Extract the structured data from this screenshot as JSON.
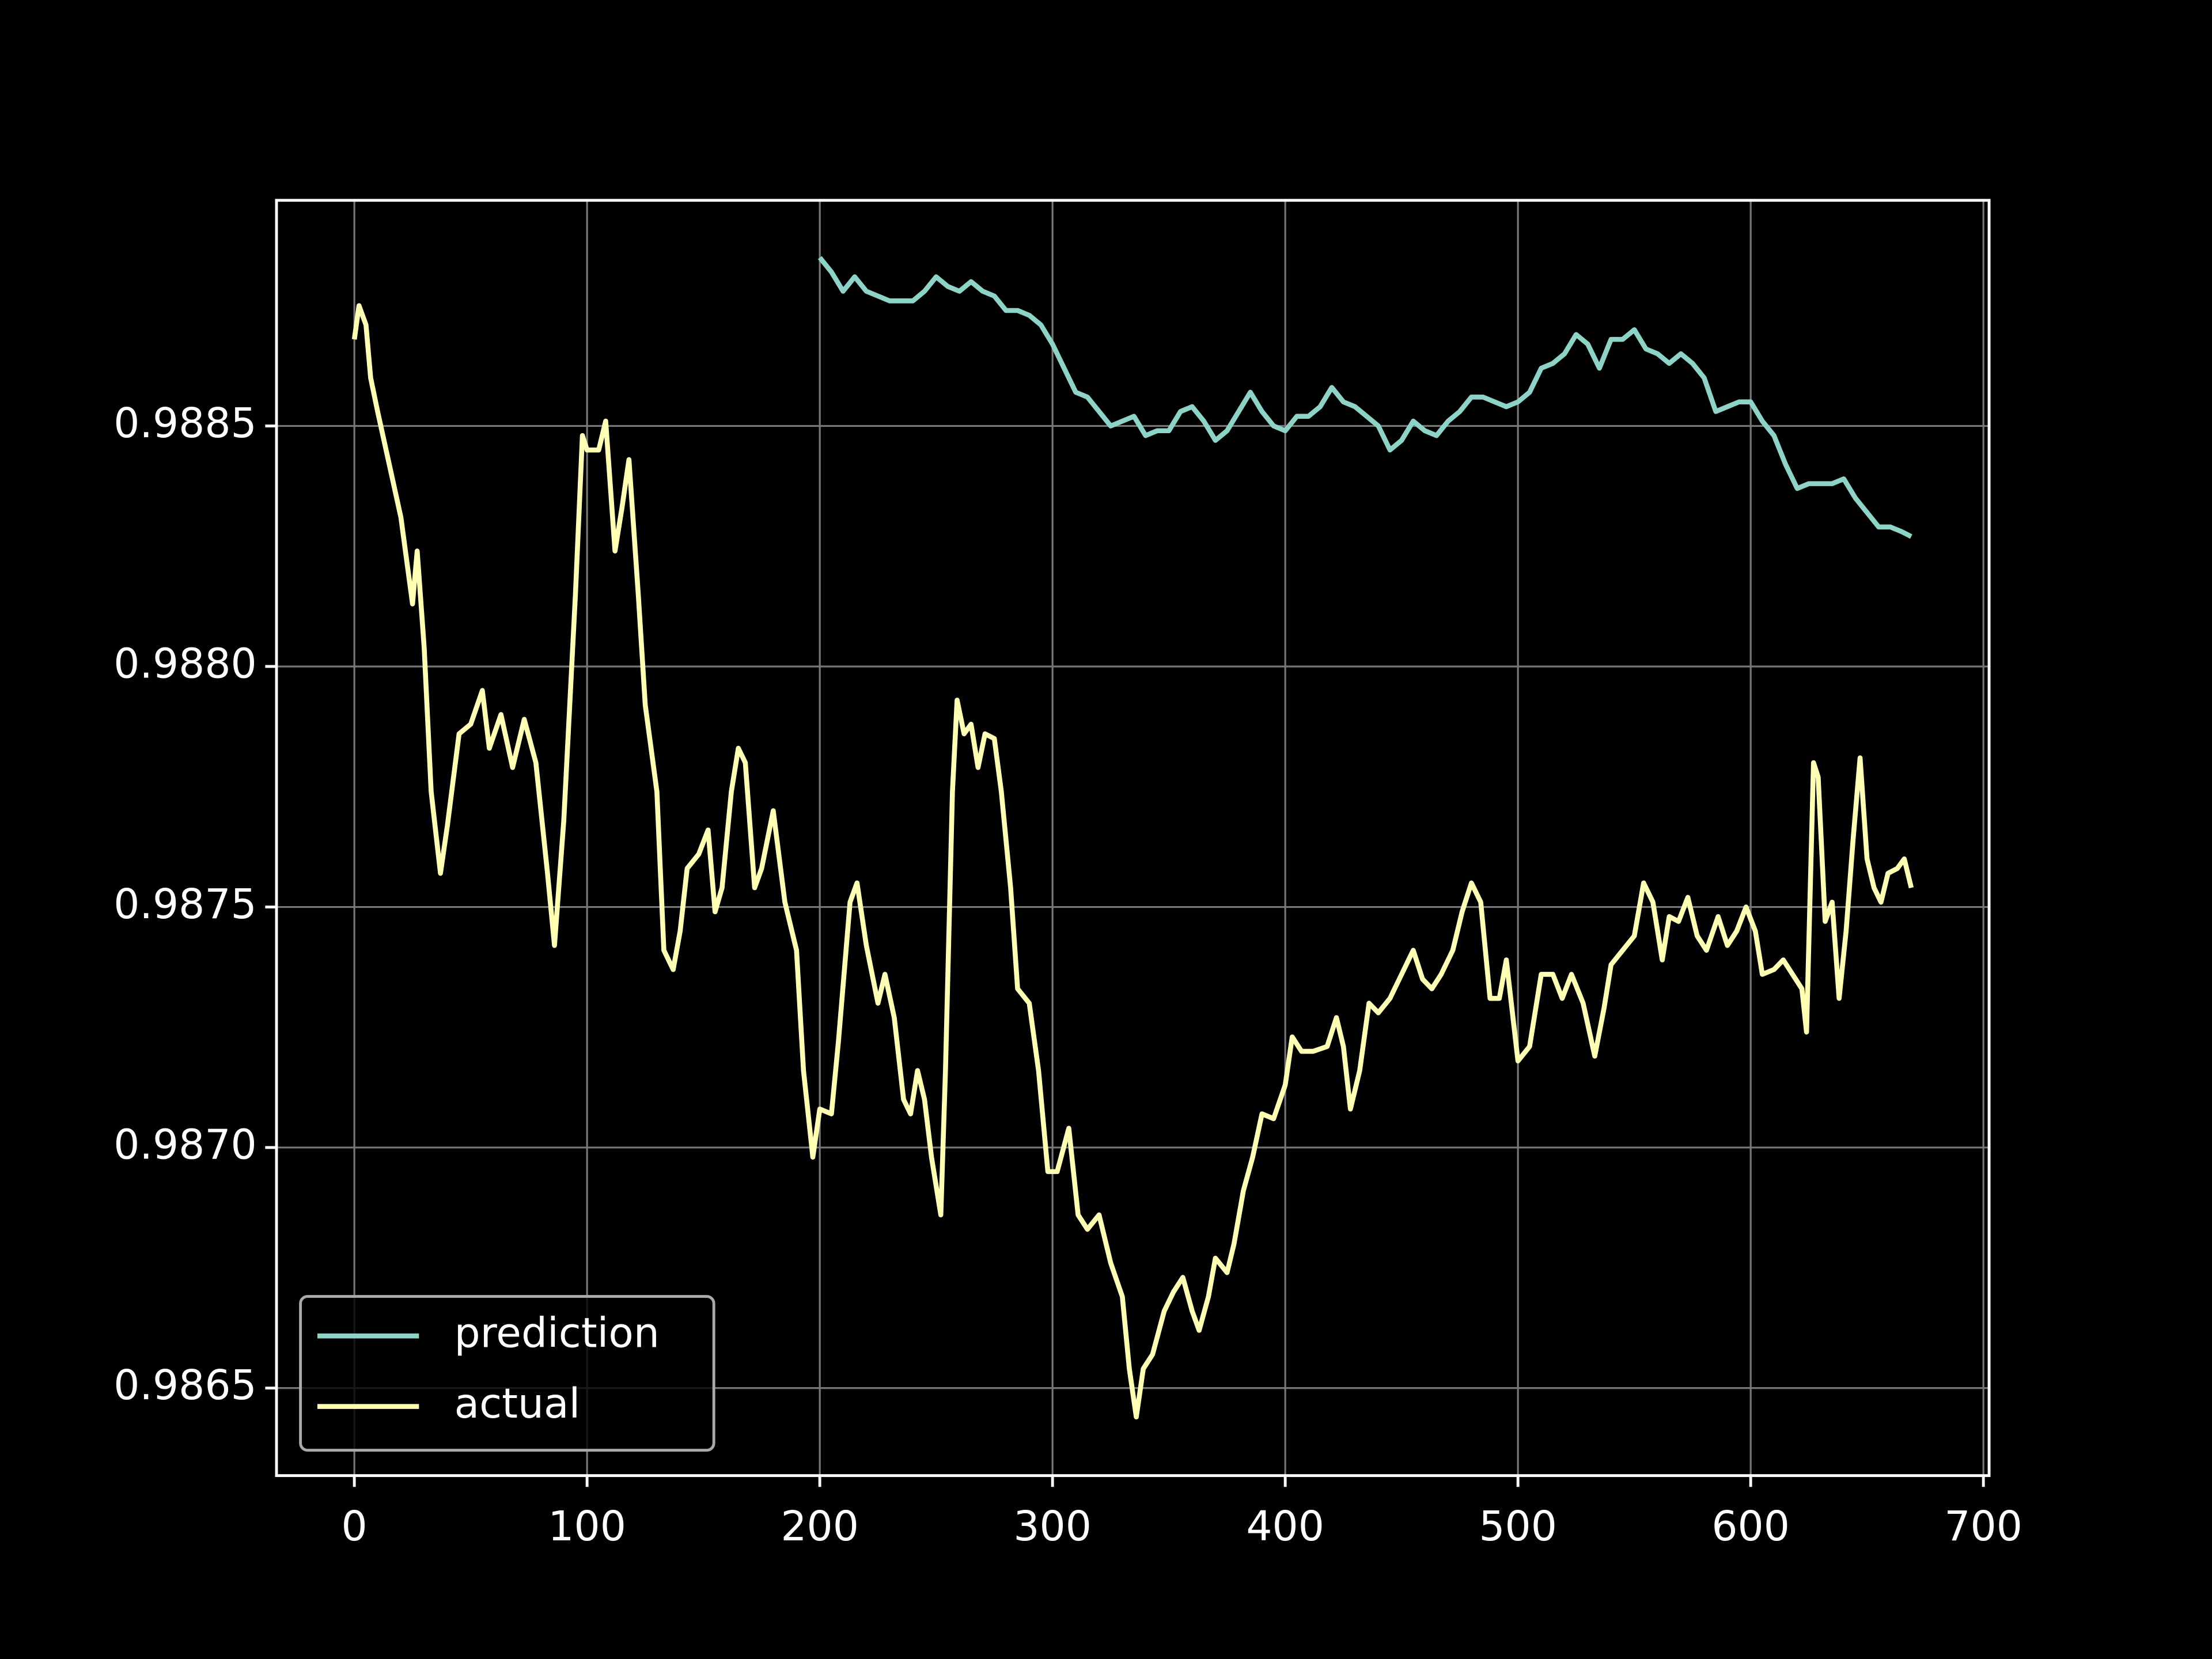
{
  "chart_data": {
    "type": "line",
    "xlim": [
      -33.45,
      702.45
    ],
    "xticks": [
      0,
      100,
      200,
      300,
      400,
      500,
      600,
      700
    ],
    "ylim": [
      0.986318,
      0.988969
    ],
    "yticks": [
      0.9865,
      {
        "value": 0.987,
        "label": "0.9870"
      },
      0.9875,
      {
        "value": 0.988,
        "label": "0.9880"
      },
      0.9885
    ],
    "grid": true,
    "legend": "lower left",
    "series": [
      {
        "name": "prediction",
        "color": "#8dd3c7",
        "x": [
          200,
          205,
          210,
          215,
          220,
          225,
          230,
          235,
          240,
          245,
          250,
          255,
          260,
          265,
          270,
          275,
          280,
          285,
          290,
          295,
          300,
          305,
          310,
          315,
          320,
          325,
          330,
          335,
          340,
          345,
          350,
          355,
          360,
          365,
          370,
          375,
          380,
          385,
          390,
          395,
          400,
          405,
          410,
          415,
          420,
          425,
          430,
          435,
          440,
          445,
          450,
          455,
          460,
          465,
          470,
          475,
          480,
          485,
          490,
          495,
          500,
          505,
          510,
          515,
          520,
          525,
          530,
          535,
          540,
          545,
          550,
          555,
          560,
          565,
          570,
          575,
          580,
          585,
          590,
          595,
          600,
          605,
          610,
          615,
          620,
          625,
          630,
          635,
          640,
          645,
          650,
          655,
          660,
          665,
          669
        ],
        "values": [
          0.98885,
          0.98882,
          0.98878,
          0.98881,
          0.98878,
          0.98877,
          0.98876,
          0.98876,
          0.98876,
          0.98878,
          0.98881,
          0.98879,
          0.98878,
          0.9888,
          0.98878,
          0.98877,
          0.98874,
          0.98874,
          0.98873,
          0.98871,
          0.98867,
          0.98862,
          0.98857,
          0.98856,
          0.98853,
          0.9885,
          0.98851,
          0.98852,
          0.98848,
          0.98849,
          0.98849,
          0.98853,
          0.98854,
          0.98851,
          0.98847,
          0.98849,
          0.98853,
          0.98857,
          0.98853,
          0.9885,
          0.98849,
          0.98852,
          0.98852,
          0.98854,
          0.98858,
          0.98855,
          0.98854,
          0.98852,
          0.9885,
          0.98845,
          0.98847,
          0.98851,
          0.98849,
          0.98848,
          0.98851,
          0.98853,
          0.98856,
          0.98856,
          0.98855,
          0.98854,
          0.98855,
          0.98857,
          0.98862,
          0.98863,
          0.98865,
          0.98869,
          0.98867,
          0.98862,
          0.98868,
          0.98868,
          0.9887,
          0.98866,
          0.98865,
          0.98863,
          0.98865,
          0.98863,
          0.9886,
          0.98853,
          0.98854,
          0.98855,
          0.98855,
          0.98851,
          0.98848,
          0.98842,
          0.98837,
          0.98838,
          0.98838,
          0.98838,
          0.98839,
          0.98835,
          0.98832,
          0.98829,
          0.98829,
          0.98828,
          0.98827
        ]
      },
      {
        "name": "actual",
        "color": "#feffb3",
        "x": [
          0,
          2,
          5,
          7,
          10,
          15,
          20,
          25,
          27,
          30,
          33,
          37,
          40,
          45,
          50,
          55,
          58,
          63,
          68,
          73,
          78,
          83,
          86,
          90,
          95,
          98,
          100,
          105,
          108,
          112,
          115,
          118,
          122,
          125,
          130,
          133,
          137,
          140,
          143,
          148,
          152,
          155,
          158,
          162,
          165,
          168,
          172,
          175,
          180,
          185,
          190,
          193,
          197,
          200,
          205,
          208,
          213,
          216,
          220,
          225,
          228,
          232,
          236,
          239,
          242,
          245,
          248,
          252,
          254,
          257,
          259,
          262,
          265,
          268,
          271,
          275,
          278,
          282,
          285,
          290,
          294,
          298,
          302,
          307,
          311,
          315,
          320,
          325,
          330,
          333,
          336,
          339,
          343,
          348,
          352,
          356,
          360,
          363,
          367,
          370,
          375,
          378,
          382,
          386,
          390,
          395,
          400,
          403,
          407,
          412,
          418,
          422,
          425,
          428,
          432,
          436,
          440,
          445,
          450,
          455,
          459,
          463,
          467,
          472,
          476,
          480,
          484,
          488,
          492,
          495,
          500,
          505,
          510,
          515,
          519,
          523,
          528,
          533,
          537,
          540,
          545,
          550,
          554,
          558,
          562,
          565,
          569,
          573,
          577,
          581,
          586,
          590,
          594,
          598,
          602,
          605,
          610,
          614,
          618,
          622,
          624,
          627,
          629,
          632,
          635,
          638,
          641,
          644,
          647,
          650,
          653,
          656,
          659,
          663,
          666,
          669
        ],
        "values": [
          0.98868,
          0.98875,
          0.98871,
          0.9886,
          0.98853,
          0.98842,
          0.98831,
          0.98813,
          0.98824,
          0.98804,
          0.98774,
          0.98757,
          0.98767,
          0.98786,
          0.98788,
          0.98795,
          0.98783,
          0.9879,
          0.98779,
          0.98789,
          0.9878,
          0.98757,
          0.98742,
          0.98768,
          0.98815,
          0.98848,
          0.98845,
          0.98845,
          0.98851,
          0.98824,
          0.98833,
          0.98843,
          0.98815,
          0.98792,
          0.98774,
          0.98741,
          0.98737,
          0.98745,
          0.98758,
          0.98761,
          0.98766,
          0.98749,
          0.98754,
          0.98774,
          0.98783,
          0.9878,
          0.98754,
          0.98758,
          0.9877,
          0.98751,
          0.98741,
          0.98716,
          0.98698,
          0.98708,
          0.98707,
          0.98722,
          0.98751,
          0.98755,
          0.98742,
          0.9873,
          0.98736,
          0.98727,
          0.9871,
          0.98707,
          0.98716,
          0.9871,
          0.98698,
          0.98686,
          0.98716,
          0.98774,
          0.98793,
          0.98786,
          0.98788,
          0.98779,
          0.98786,
          0.98785,
          0.98774,
          0.98754,
          0.98733,
          0.9873,
          0.98716,
          0.98695,
          0.98695,
          0.98704,
          0.98686,
          0.98683,
          0.98686,
          0.98676,
          0.98669,
          0.98654,
          0.98644,
          0.98654,
          0.98657,
          0.98666,
          0.9867,
          0.98673,
          0.98666,
          0.98662,
          0.98669,
          0.98677,
          0.98674,
          0.9868,
          0.98691,
          0.98698,
          0.98707,
          0.98706,
          0.98713,
          0.98723,
          0.9872,
          0.9872,
          0.98721,
          0.98727,
          0.98721,
          0.98708,
          0.98716,
          0.9873,
          0.98728,
          0.98731,
          0.98736,
          0.98741,
          0.98735,
          0.98733,
          0.98736,
          0.98741,
          0.98749,
          0.98755,
          0.98751,
          0.98731,
          0.98731,
          0.98739,
          0.98718,
          0.98721,
          0.98736,
          0.98736,
          0.98731,
          0.98736,
          0.9873,
          0.98719,
          0.98729,
          0.98738,
          0.98741,
          0.98744,
          0.98755,
          0.98751,
          0.98739,
          0.98748,
          0.98747,
          0.98752,
          0.98744,
          0.98741,
          0.98748,
          0.98742,
          0.98745,
          0.9875,
          0.98745,
          0.98736,
          0.98737,
          0.98739,
          0.98736,
          0.98733,
          0.98724,
          0.9878,
          0.98777,
          0.98747,
          0.98751,
          0.98731,
          0.98745,
          0.98764,
          0.98781,
          0.9876,
          0.98754,
          0.98751,
          0.98757,
          0.98758,
          0.9876,
          0.98754
        ]
      }
    ]
  }
}
